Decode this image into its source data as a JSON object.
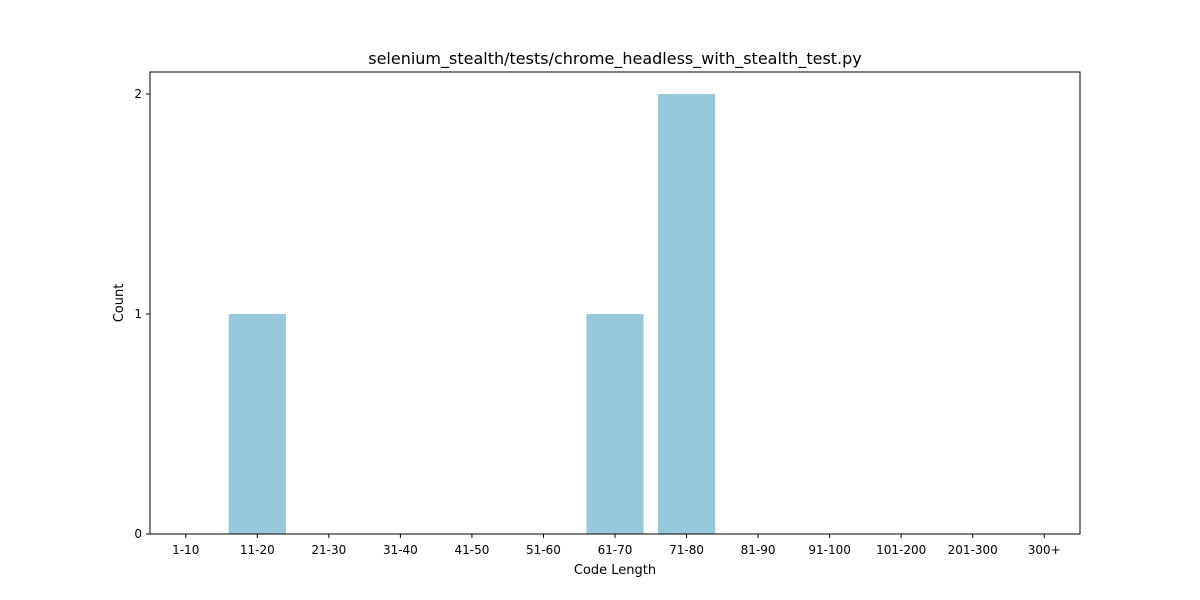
{
  "chart_data": {
    "type": "bar",
    "title": "selenium_stealth/tests/chrome_headless_with_stealth_test.py",
    "xlabel": "Code Length",
    "ylabel": "Count",
    "categories": [
      "1-10",
      "11-20",
      "21-30",
      "31-40",
      "41-50",
      "51-60",
      "61-70",
      "71-80",
      "81-90",
      "91-100",
      "101-200",
      "201-300",
      "300+"
    ],
    "values": [
      0,
      1,
      0,
      0,
      0,
      0,
      1,
      2,
      0,
      0,
      0,
      0,
      0
    ],
    "yticks": [
      0,
      1,
      2
    ],
    "ylim": [
      0,
      2.1
    ],
    "grid": false,
    "legend": "none",
    "bar_color": "#96c9dc"
  }
}
